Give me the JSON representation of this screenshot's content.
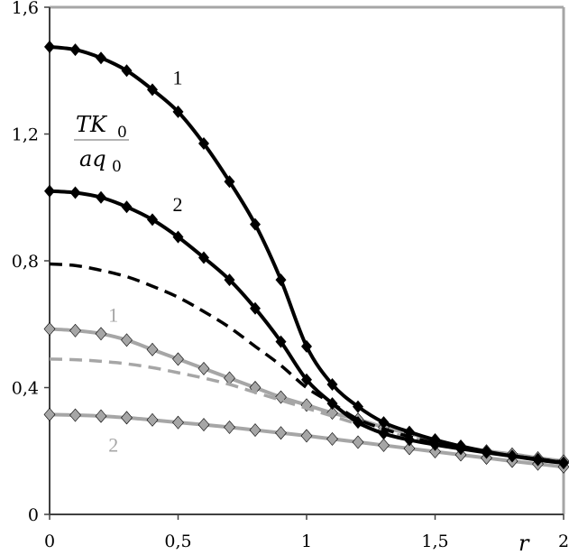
{
  "chart_data": {
    "type": "line",
    "title": "",
    "xlabel": "r",
    "ylabel": {
      "numerator": "TK",
      "numerator_sub": "0",
      "denominator": "aq",
      "denominator_sub": "0"
    },
    "xlim": [
      0,
      2
    ],
    "ylim": [
      0,
      1.6
    ],
    "x_ticks": [
      "0",
      "0,5",
      "1",
      "1,5",
      "2"
    ],
    "x_tick_values": [
      0,
      0.5,
      1,
      1.5,
      2
    ],
    "y_ticks": [
      "0",
      "0,4",
      "0,8",
      "1,2",
      "1,6"
    ],
    "y_tick_values": [
      0,
      0.4,
      0.8,
      1.2,
      1.6
    ],
    "grid": false,
    "x": [
      0,
      0.1,
      0.2,
      0.3,
      0.4,
      0.5,
      0.6,
      0.7,
      0.8,
      0.9,
      1.0,
      1.1,
      1.2,
      1.3,
      1.4,
      1.5,
      1.6,
      1.7,
      1.8,
      1.9,
      2.0
    ],
    "series": [
      {
        "name": "black-1",
        "color": "#000000",
        "style": "solid",
        "markers": true,
        "values": [
          1.475,
          1.466,
          1.44,
          1.4,
          1.34,
          1.27,
          1.17,
          1.05,
          0.915,
          0.74,
          0.53,
          0.41,
          0.34,
          0.29,
          0.26,
          0.235,
          0.215,
          0.198,
          0.184,
          0.172,
          0.162
        ]
      },
      {
        "name": "black-2",
        "color": "#000000",
        "style": "solid",
        "markers": true,
        "values": [
          1.02,
          1.015,
          1.0,
          0.97,
          0.93,
          0.875,
          0.81,
          0.74,
          0.65,
          0.545,
          0.425,
          0.35,
          0.29,
          0.255,
          0.235,
          0.22,
          0.207,
          0.195,
          0.184,
          0.174,
          0.163
        ]
      },
      {
        "name": "black-dashed",
        "color": "#000000",
        "style": "dashed",
        "markers": false,
        "values": [
          0.79,
          0.785,
          0.77,
          0.75,
          0.72,
          0.685,
          0.64,
          0.59,
          0.53,
          0.47,
          0.4,
          0.35,
          0.3,
          0.27,
          0.245,
          0.225,
          0.21,
          0.195,
          0.185,
          0.175,
          0.165
        ]
      },
      {
        "name": "gray-1",
        "color": "#a6a6a6",
        "style": "solid",
        "markers": true,
        "values": [
          0.585,
          0.58,
          0.57,
          0.55,
          0.52,
          0.49,
          0.46,
          0.43,
          0.4,
          0.37,
          0.345,
          0.32,
          0.3,
          0.275,
          0.255,
          0.235,
          0.215,
          0.2,
          0.19,
          0.178,
          0.168
        ]
      },
      {
        "name": "gray-dashed",
        "color": "#a6a6a6",
        "style": "dashed",
        "markers": false,
        "values": [
          0.49,
          0.488,
          0.483,
          0.475,
          0.463,
          0.447,
          0.43,
          0.41,
          0.385,
          0.36,
          0.335,
          0.31,
          0.285,
          0.262,
          0.243,
          0.226,
          0.21,
          0.197,
          0.185,
          0.173,
          0.163
        ]
      },
      {
        "name": "gray-2",
        "color": "#a6a6a6",
        "style": "solid",
        "markers": true,
        "values": [
          0.315,
          0.313,
          0.31,
          0.305,
          0.298,
          0.29,
          0.283,
          0.275,
          0.266,
          0.257,
          0.248,
          0.238,
          0.228,
          0.218,
          0.208,
          0.198,
          0.188,
          0.178,
          0.168,
          0.159,
          0.15
        ]
      }
    ],
    "annotations": [
      {
        "text": "1",
        "color": "#000000",
        "x": 0.5,
        "y": 1.38
      },
      {
        "text": "2",
        "color": "#000000",
        "x": 0.5,
        "y": 0.98
      },
      {
        "text": "1",
        "color": "#a6a6a6",
        "x": 0.25,
        "y": 0.63
      },
      {
        "text": "2",
        "color": "#a6a6a6",
        "x": 0.25,
        "y": 0.22
      }
    ]
  }
}
